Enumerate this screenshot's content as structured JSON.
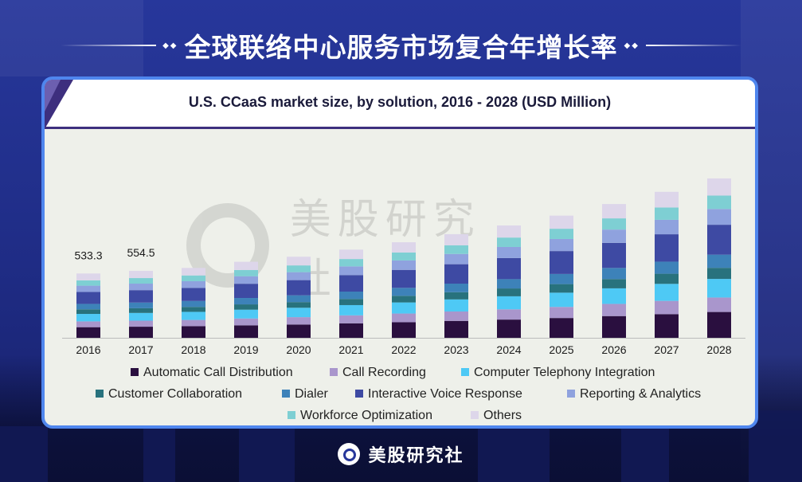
{
  "page_title": "全球联络中心服务市场复合年增长率",
  "title_diamonds_left": "◆◆",
  "title_diamonds_right": "◆◆",
  "watermark_text": "美股研究社",
  "footer_brand": "美股研究社",
  "colors": {
    "background": "#27379b",
    "card_border": "#4f86ee",
    "header_accent": "#3d2f7e"
  },
  "chart_data": {
    "type": "bar",
    "stacked": true,
    "title": "U.S. CCaaS market size, by solution, 2016 - 2028 (USD Million)",
    "categories": [
      "2016",
      "2017",
      "2018",
      "2019",
      "2020",
      "2021",
      "2022",
      "2023",
      "2024",
      "2025",
      "2026",
      "2027",
      "2028"
    ],
    "annotations": [
      {
        "category": "2016",
        "label": "533.3"
      },
      {
        "category": "2017",
        "label": "554.5"
      }
    ],
    "legend_position": "bottom",
    "series": [
      {
        "name": "Automatic Call Distribution",
        "color": "#2a0f3f",
        "values": [
          88,
          92,
          96,
          103,
          110,
          120,
          129,
          140,
          151,
          164,
          180,
          196,
          214
        ]
      },
      {
        "name": "Call Recording",
        "color": "#a996cc",
        "values": [
          48,
          50,
          52,
          57,
          61,
          66,
          72,
          78,
          85,
          92,
          101,
          110,
          120
        ]
      },
      {
        "name": "Computer Telephony Integration",
        "color": "#4ec9f5",
        "values": [
          62,
          64,
          67,
          73,
          78,
          85,
          92,
          100,
          108,
          118,
          129,
          141,
          154
        ]
      },
      {
        "name": "Customer Collaboration",
        "color": "#28727d",
        "values": [
          38,
          39,
          41,
          44,
          47,
          51,
          55,
          60,
          65,
          71,
          77,
          84,
          92
        ]
      },
      {
        "name": "Dialer",
        "color": "#3d82b9",
        "values": [
          45,
          47,
          49,
          53,
          56,
          61,
          66,
          71,
          77,
          84,
          92,
          100,
          109
        ]
      },
      {
        "name": "Interactive Voice Response",
        "color": "#3e4aa3",
        "values": [
          99,
          103,
          108,
          118,
          126,
          137,
          149,
          161,
          175,
          190,
          208,
          227,
          248
        ]
      },
      {
        "name": "Reporting & Analytics",
        "color": "#8fa2de",
        "values": [
          52,
          54,
          56,
          62,
          66,
          72,
          78,
          85,
          92,
          100,
          110,
          120,
          131
        ]
      },
      {
        "name": "Workforce Optimization",
        "color": "#7ecfd3",
        "values": [
          44,
          46,
          48,
          52,
          56,
          61,
          66,
          72,
          78,
          85,
          93,
          102,
          111
        ]
      },
      {
        "name": "Others",
        "color": "#ddd6ea",
        "values": [
          57,
          60,
          62,
          68,
          72,
          78,
          85,
          92,
          100,
          109,
          119,
          130,
          142
        ]
      }
    ],
    "ylim": [
      0,
      1400
    ]
  }
}
